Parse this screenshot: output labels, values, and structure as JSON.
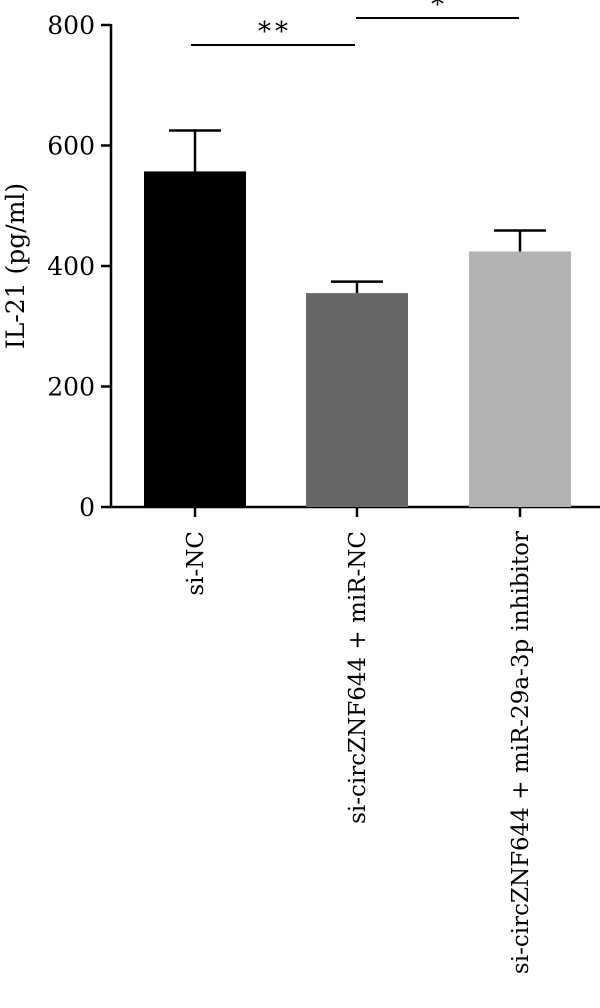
{
  "chart_data": {
    "type": "bar",
    "title": "",
    "xlabel": "",
    "ylabel": "IL-21 (pg/ml)",
    "ylim": [
      0,
      800
    ],
    "yticks": [
      0,
      200,
      400,
      600,
      800
    ],
    "ytick_labels": [
      "0",
      "200",
      "400",
      "600",
      "800"
    ],
    "categories": [
      "si-NC",
      "si-circZNF644 + miR-NC",
      "si-circZNF644 + miR-29a-3p inhibitor"
    ],
    "values": [
      557,
      355,
      424
    ],
    "error_upper": [
      625,
      374,
      459
    ],
    "bar_colors": [
      "#000000",
      "#666666",
      "#b3b3b3"
    ],
    "grid": false,
    "significance": [
      {
        "from": 0,
        "to": 1,
        "label": "**"
      },
      {
        "from": 1,
        "to": 2,
        "label": "*"
      }
    ]
  }
}
